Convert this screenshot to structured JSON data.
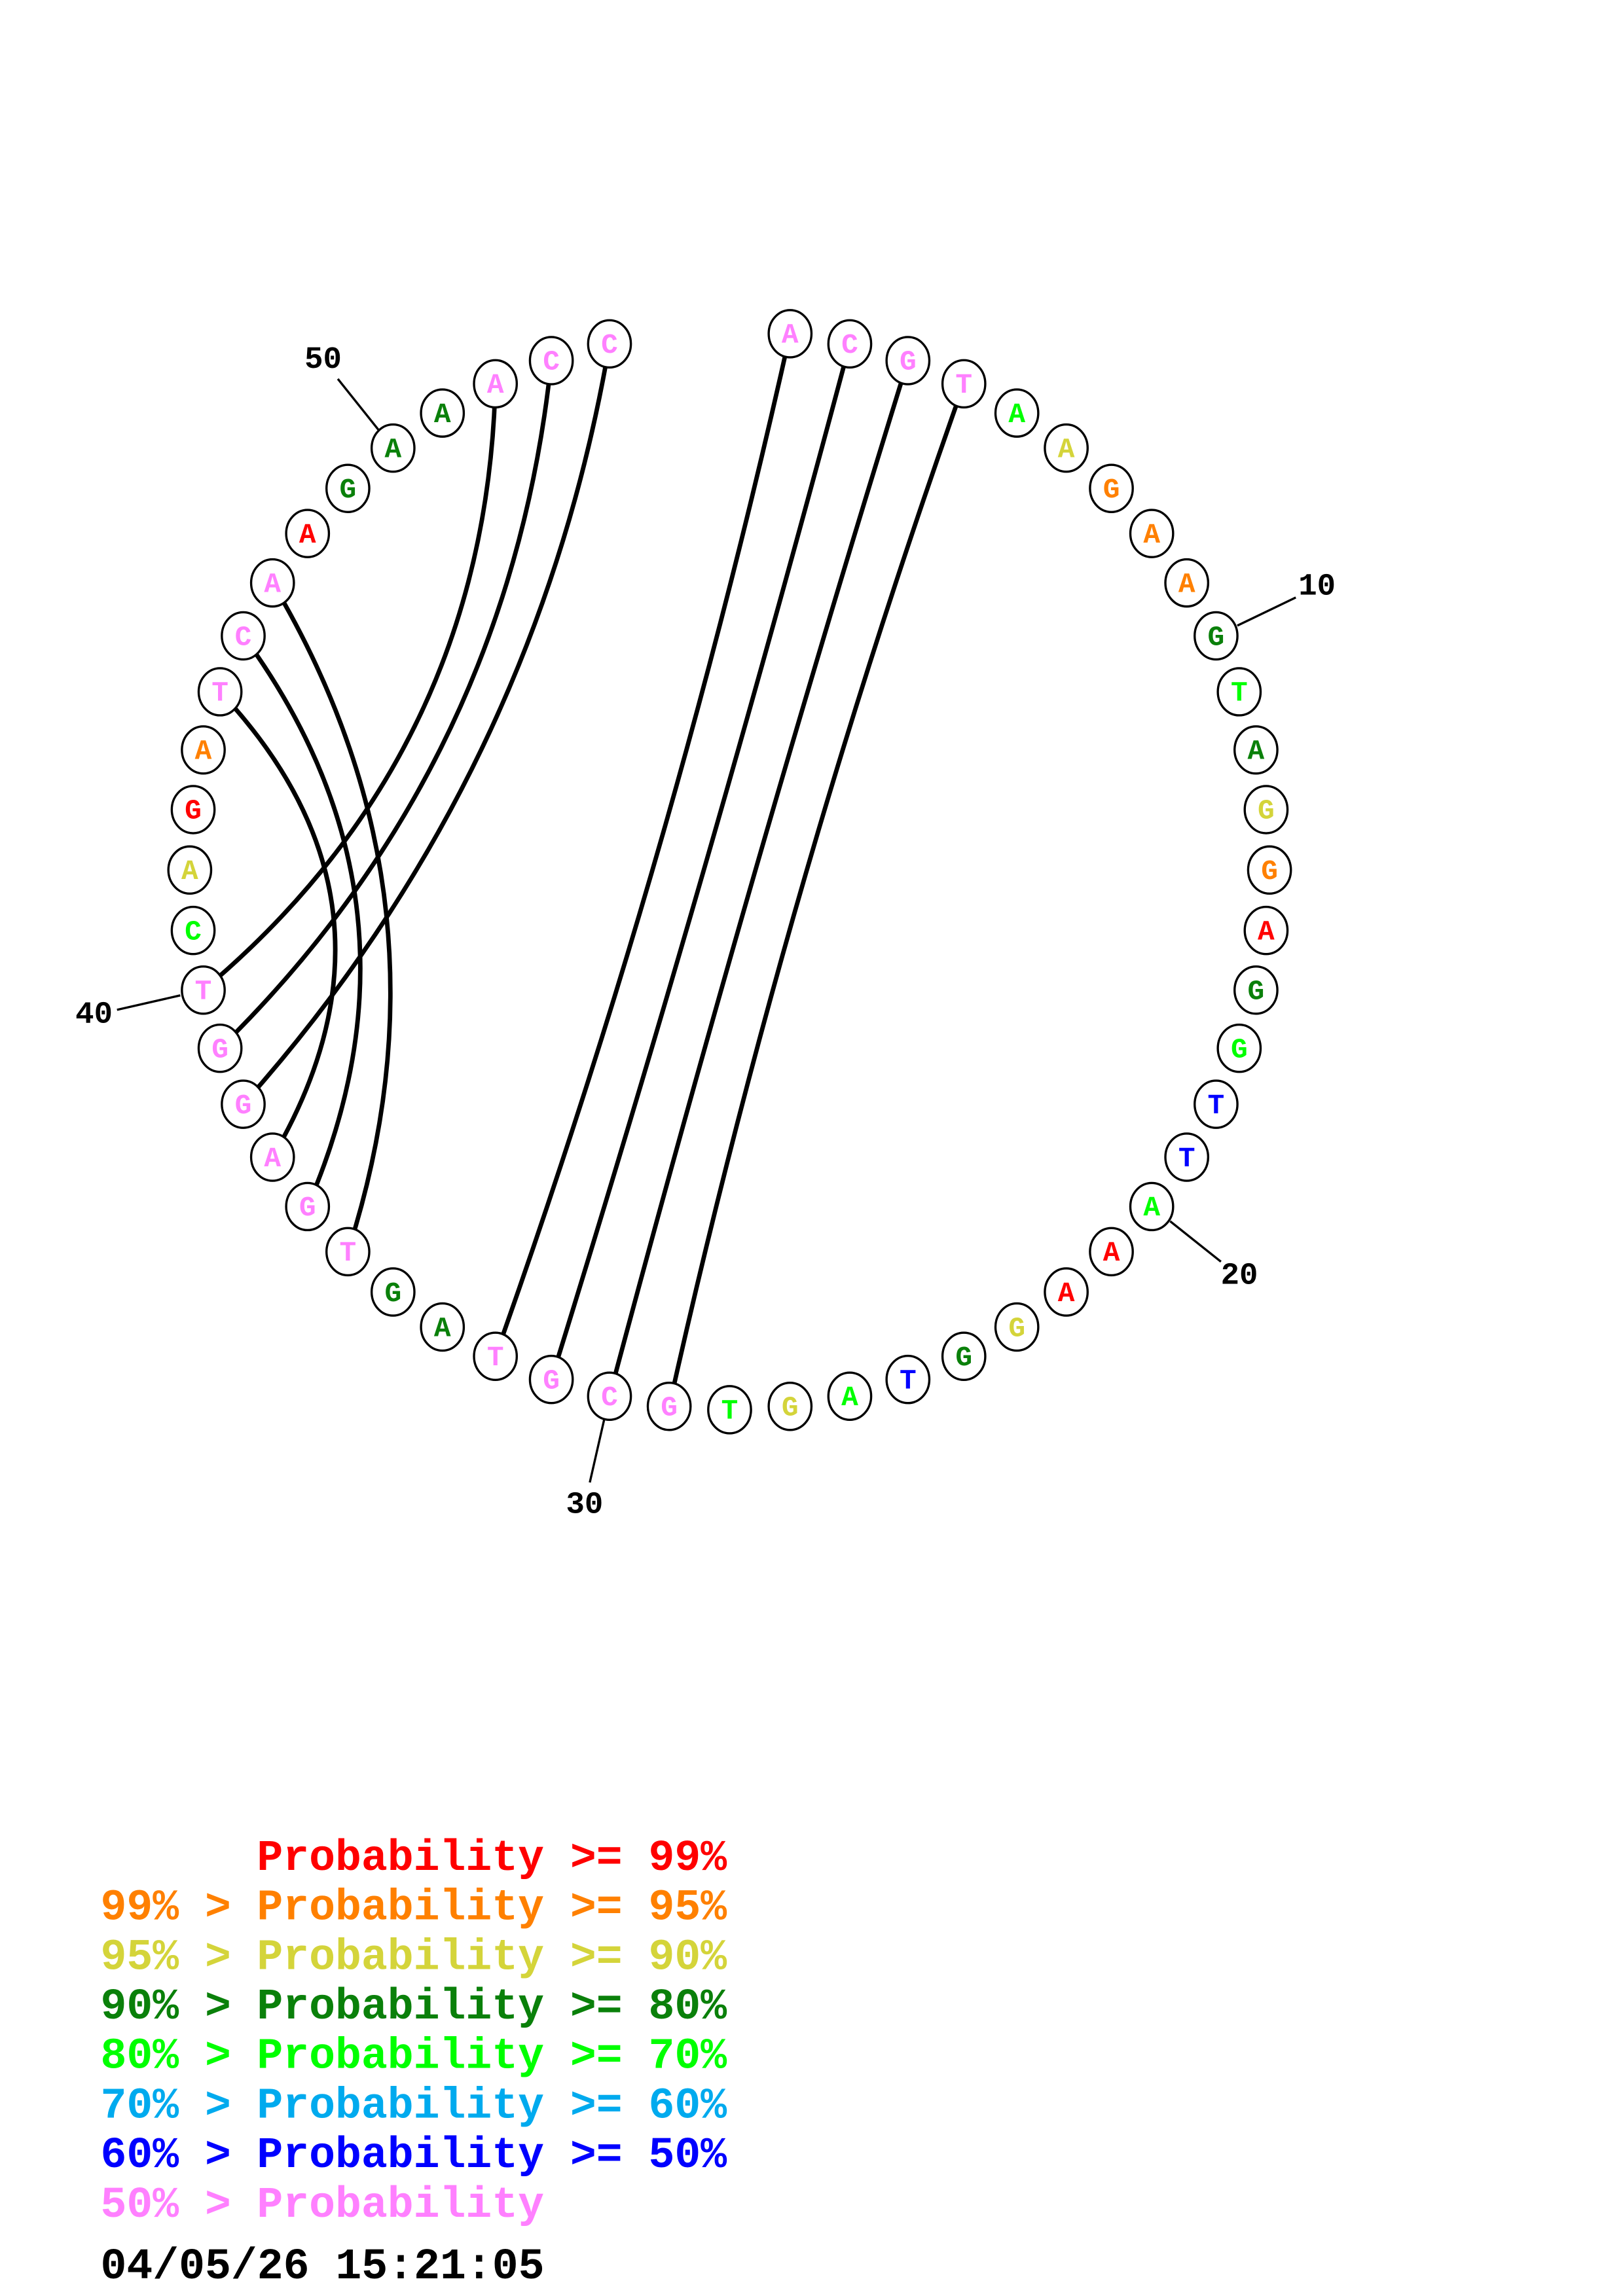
{
  "colors": [
    "#ff0000",
    "#ff8000",
    "#d4d43a",
    "#0a800a",
    "#00ff00",
    "#00aaee",
    "#0000ff",
    "#ff80ff"
  ],
  "nucleotides": [
    {
      "base": "A",
      "cat": 7
    },
    {
      "base": "C",
      "cat": 7
    },
    {
      "base": "G",
      "cat": 7
    },
    {
      "base": "T",
      "cat": 7
    },
    {
      "base": "A",
      "cat": 4
    },
    {
      "base": "A",
      "cat": 2
    },
    {
      "base": "G",
      "cat": 1
    },
    {
      "base": "A",
      "cat": 1
    },
    {
      "base": "A",
      "cat": 1
    },
    {
      "base": "G",
      "cat": 3
    },
    {
      "base": "T",
      "cat": 4
    },
    {
      "base": "A",
      "cat": 3
    },
    {
      "base": "G",
      "cat": 2
    },
    {
      "base": "G",
      "cat": 1
    },
    {
      "base": "A",
      "cat": 0
    },
    {
      "base": "G",
      "cat": 3
    },
    {
      "base": "G",
      "cat": 4
    },
    {
      "base": "T",
      "cat": 6
    },
    {
      "base": "T",
      "cat": 6
    },
    {
      "base": "A",
      "cat": 4
    },
    {
      "base": "A",
      "cat": 0
    },
    {
      "base": "A",
      "cat": 0
    },
    {
      "base": "G",
      "cat": 2
    },
    {
      "base": "G",
      "cat": 3
    },
    {
      "base": "T",
      "cat": 6
    },
    {
      "base": "A",
      "cat": 4
    },
    {
      "base": "G",
      "cat": 2
    },
    {
      "base": "T",
      "cat": 4
    },
    {
      "base": "G",
      "cat": 7
    },
    {
      "base": "C",
      "cat": 7
    },
    {
      "base": "G",
      "cat": 7
    },
    {
      "base": "T",
      "cat": 7
    },
    {
      "base": "A",
      "cat": 3
    },
    {
      "base": "G",
      "cat": 3
    },
    {
      "base": "T",
      "cat": 7
    },
    {
      "base": "G",
      "cat": 7
    },
    {
      "base": "A",
      "cat": 7
    },
    {
      "base": "G",
      "cat": 7
    },
    {
      "base": "G",
      "cat": 7
    },
    {
      "base": "T",
      "cat": 7
    },
    {
      "base": "C",
      "cat": 4
    },
    {
      "base": "A",
      "cat": 2
    },
    {
      "base": "G",
      "cat": 0
    },
    {
      "base": "A",
      "cat": 1
    },
    {
      "base": "T",
      "cat": 7
    },
    {
      "base": "C",
      "cat": 7
    },
    {
      "base": "A",
      "cat": 7
    },
    {
      "base": "A",
      "cat": 0
    },
    {
      "base": "G",
      "cat": 3
    },
    {
      "base": "A",
      "cat": 3
    },
    {
      "base": "A",
      "cat": 3
    },
    {
      "base": "A",
      "cat": 7
    },
    {
      "base": "C",
      "cat": 7
    },
    {
      "base": "C",
      "cat": 7
    }
  ],
  "pairs": [
    [
      1,
      32
    ],
    [
      2,
      31
    ],
    [
      3,
      30
    ],
    [
      4,
      29
    ],
    [
      52,
      40
    ],
    [
      53,
      39
    ],
    [
      54,
      38
    ],
    [
      45,
      37
    ],
    [
      46,
      36
    ],
    [
      47,
      35
    ]
  ],
  "position_labels": [
    {
      "pos": 10,
      "text": "10"
    },
    {
      "pos": 20,
      "text": "20"
    },
    {
      "pos": 30,
      "text": "30"
    },
    {
      "pos": 40,
      "text": "40"
    },
    {
      "pos": 50,
      "text": "50"
    }
  ],
  "legend": [
    {
      "prefix": "",
      "main": "Probability >= 99%"
    },
    {
      "prefix": "99% >",
      "main": "Probability >= 95%"
    },
    {
      "prefix": "95% >",
      "main": "Probability >= 90%"
    },
    {
      "prefix": "90% >",
      "main": "Probability >= 80%"
    },
    {
      "prefix": "80% >",
      "main": "Probability >= 70%"
    },
    {
      "prefix": "70% >",
      "main": "Probability >= 60%"
    },
    {
      "prefix": "60% >",
      "main": "Probability >= 50%"
    },
    {
      "prefix": "50% >",
      "main": "Probability"
    }
  ],
  "timestamp": "04/05/26 15:21:05"
}
